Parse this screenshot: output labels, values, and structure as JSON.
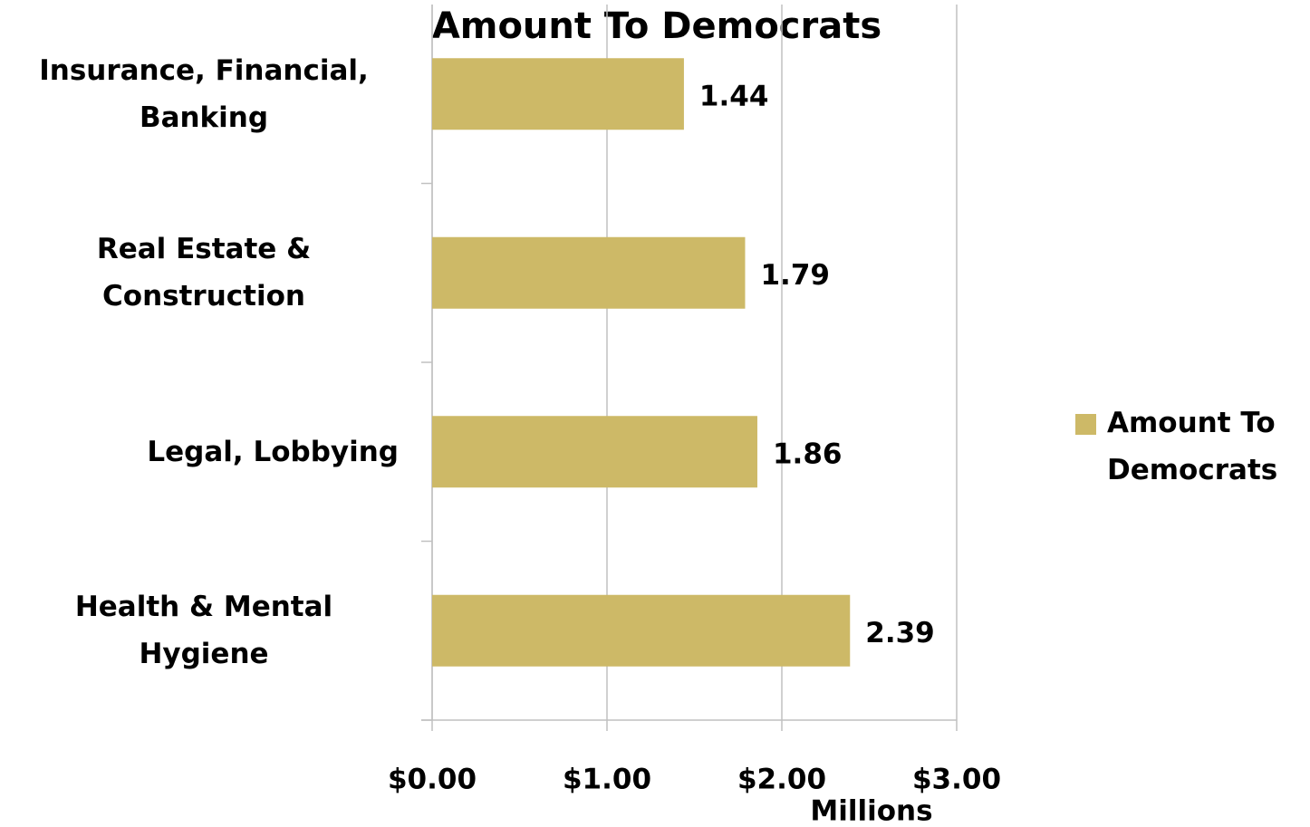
{
  "chart_data": {
    "type": "bar",
    "orientation": "horizontal",
    "title": "Amount To Democrats",
    "categories": [
      "Insurance, Financial, Banking",
      "Real Estate & Construction",
      "Legal, Lobbying",
      "Health & Mental Hygiene"
    ],
    "values": [
      1.44,
      1.79,
      1.86,
      2.39
    ],
    "color": "#cdb967",
    "xlim": [
      0,
      3
    ],
    "xticks": [
      {
        "value": 0,
        "label": "$0.00"
      },
      {
        "value": 1,
        "label": "$1.00"
      },
      {
        "value": 2,
        "label": "$2.00"
      },
      {
        "value": 3,
        "label": "$3.00"
      }
    ],
    "xlabel": "Millions",
    "grid": true,
    "legend": {
      "position": "right",
      "entries": [
        "Amount To Democrats"
      ]
    }
  }
}
